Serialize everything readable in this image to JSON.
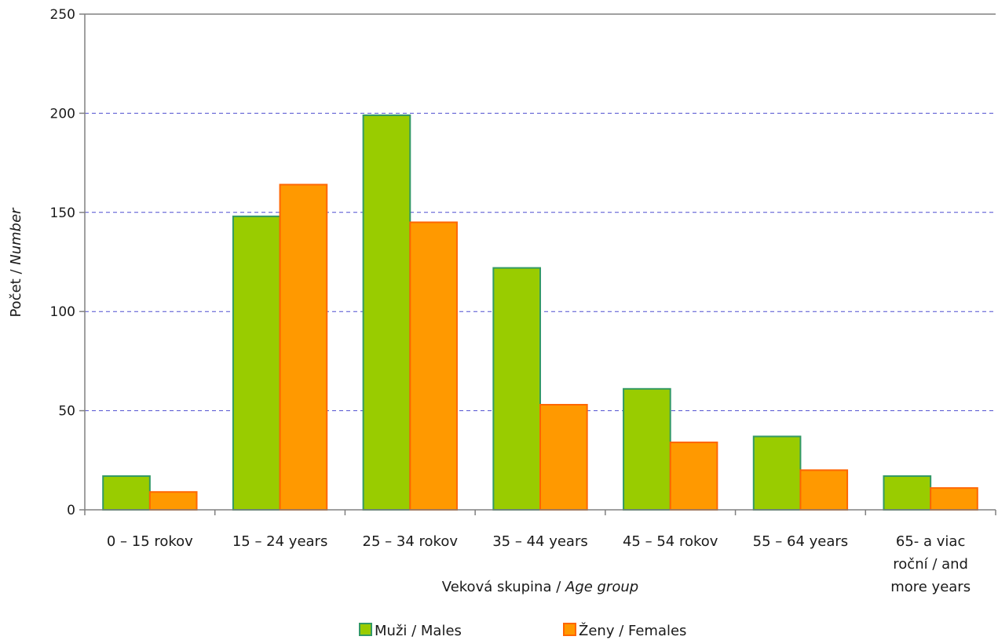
{
  "chart_data": {
    "type": "bar",
    "categories": [
      [
        "0 – 15 rokov"
      ],
      [
        "15 – 24 years"
      ],
      [
        "25 – 34 rokov"
      ],
      [
        "35 – 44 years"
      ],
      [
        "45 – 54 rokov"
      ],
      [
        "55 –  64  years"
      ],
      [
        "65- a viac",
        "roční / and",
        "more years"
      ]
    ],
    "series": [
      {
        "name": "Muži / Males",
        "color": "#99cc00",
        "stroke": "#339966",
        "values": [
          17,
          148,
          199,
          122,
          61,
          37,
          17
        ]
      },
      {
        "name": "Ženy / Females",
        "color": "#ff9900",
        "stroke": "#ff6600",
        "values": [
          9,
          164,
          145,
          53,
          34,
          20,
          11
        ]
      }
    ],
    "xlabel": {
      "main": "Veková skupina / ",
      "italic": "Age group"
    },
    "ylabel": {
      "main": "Počet / ",
      "italic": "Number"
    },
    "ylim": [
      0,
      250
    ],
    "yticks": [
      0,
      50,
      100,
      150,
      200,
      250
    ],
    "grid": true,
    "gridline_color": "#4f4fcf",
    "legend_position": "bottom"
  }
}
